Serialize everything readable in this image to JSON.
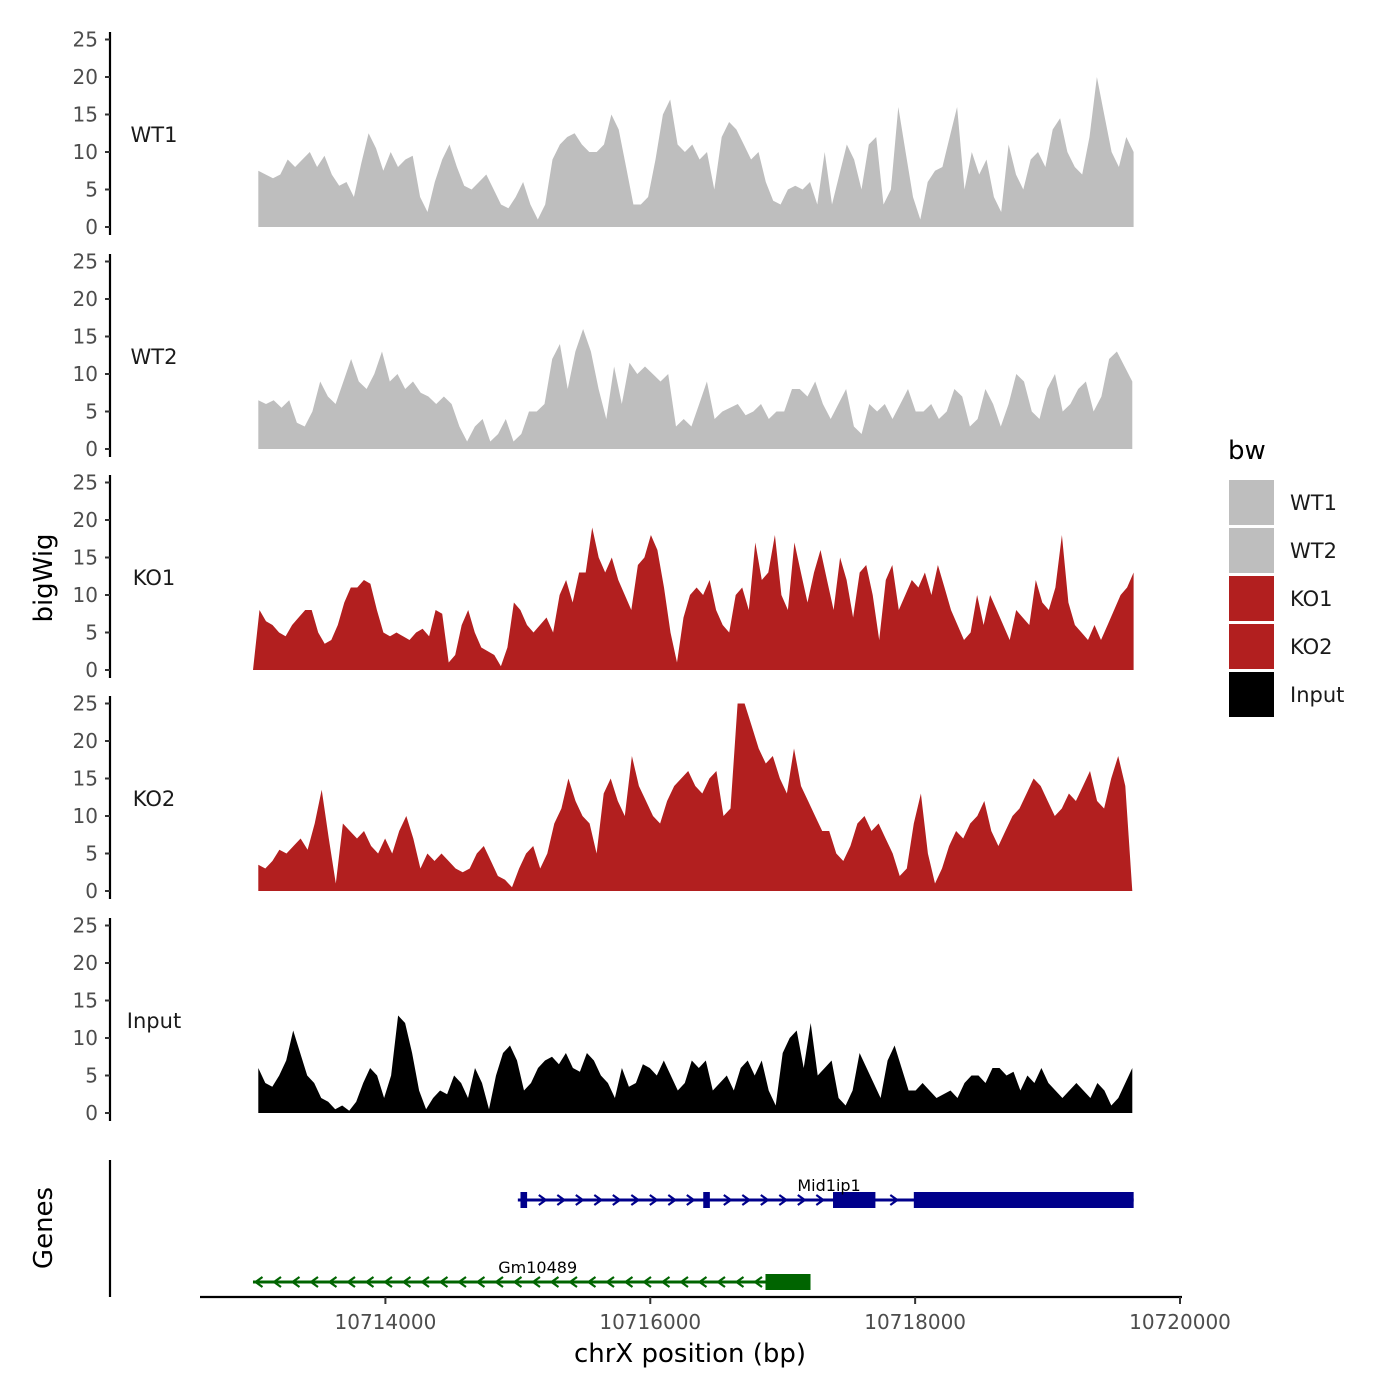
{
  "chart_data": {
    "type": "area",
    "ylabel": "bigWig",
    "xlabel": "chrX position (bp)",
    "genes_label": "Genes",
    "ylim": [
      0,
      26
    ],
    "xlim": [
      10712600,
      10720000
    ],
    "y_ticks": [
      0,
      5,
      10,
      15,
      20,
      25
    ],
    "y_tick_labels": [
      "0",
      "5",
      "10",
      "15",
      "20",
      "25"
    ],
    "x_ticks": [
      10714000,
      10716000,
      10718000,
      10720000
    ],
    "x_tick_labels": [
      "10714000",
      "10716000",
      "10718000",
      "10720000"
    ],
    "legend": {
      "title": "bw",
      "entries": [
        {
          "label": "WT1",
          "color": "#bebebe"
        },
        {
          "label": "WT2",
          "color": "#bebebe"
        },
        {
          "label": "KO1",
          "color": "#b21f1f"
        },
        {
          "label": "KO2",
          "color": "#b21f1f"
        },
        {
          "label": "Input",
          "color": "#000000"
        }
      ]
    },
    "series": [
      {
        "name": "WT1",
        "color": "#bebebe",
        "x_start": 10713040,
        "x_end": 10719650,
        "values": [
          7.5,
          7,
          6.5,
          7,
          9,
          8,
          9,
          10,
          8,
          9.5,
          7,
          5.5,
          6,
          4,
          8.5,
          12.5,
          10.5,
          7.5,
          10,
          8,
          9,
          9.5,
          4,
          2,
          6,
          9,
          11,
          8,
          5.5,
          5,
          6,
          7,
          5,
          3,
          2.5,
          4,
          6,
          3,
          1,
          3,
          9,
          11,
          12,
          12.5,
          11,
          10,
          10,
          11,
          15,
          13,
          8,
          3,
          3,
          4,
          9,
          15,
          17,
          11,
          10,
          11,
          9,
          10,
          5,
          12,
          14,
          13,
          11,
          9,
          10,
          6,
          3.5,
          3,
          5,
          5.5,
          5,
          6,
          3,
          10,
          3,
          7,
          11,
          9,
          5,
          11,
          12,
          3,
          5,
          16,
          10,
          4,
          1,
          6,
          7.5,
          8,
          12,
          16,
          5,
          10,
          7,
          9,
          4,
          2,
          11,
          7,
          5,
          9,
          10,
          8,
          13,
          14.5,
          10,
          8,
          7,
          12,
          20,
          15,
          10,
          8,
          12,
          10
        ]
      },
      {
        "name": "WT2",
        "color": "#bebebe",
        "x_start": 10713040,
        "x_end": 10719640,
        "values": [
          6.5,
          6,
          6.5,
          5.5,
          6.5,
          3.5,
          3,
          5,
          9,
          7,
          6,
          9,
          12,
          9,
          8,
          10,
          13,
          9,
          10,
          8,
          9,
          7.5,
          7,
          6,
          7,
          6,
          3,
          1,
          3,
          4,
          1,
          2,
          4,
          1,
          2,
          5,
          5,
          6,
          12,
          14,
          8,
          13,
          16,
          13,
          8,
          4,
          11,
          6,
          11.5,
          10,
          11,
          10,
          9,
          10,
          3,
          4,
          3,
          6,
          9,
          4,
          5,
          5.5,
          6,
          4.5,
          5,
          6,
          4,
          5,
          5,
          8,
          8,
          7,
          9,
          6,
          4,
          6,
          8,
          3,
          2,
          6,
          5,
          6,
          4,
          6,
          8,
          5,
          5,
          6,
          4,
          5,
          8,
          7,
          3,
          4,
          8,
          6,
          3,
          6,
          10,
          9,
          5,
          4,
          8,
          10,
          5,
          6,
          8,
          9,
          5,
          7,
          12,
          13,
          11,
          9
        ]
      },
      {
        "name": "KO1",
        "color": "#b21f1f",
        "x_start": 10713000,
        "x_end": 10719650,
        "values": [
          0,
          8,
          6.5,
          6,
          5,
          4.5,
          6,
          7,
          8,
          8,
          5,
          3.5,
          4,
          6,
          9,
          11,
          11,
          12,
          11.5,
          8,
          5,
          4.5,
          5,
          4.5,
          4,
          5,
          5.5,
          4.5,
          8,
          7.5,
          1,
          2,
          6,
          8,
          5,
          3,
          2.5,
          2,
          0.5,
          3,
          9,
          8,
          6,
          5,
          6,
          7,
          5,
          10,
          12,
          9,
          13,
          13,
          19,
          15,
          13,
          15,
          12,
          10,
          8,
          14,
          15,
          18,
          16,
          11,
          5,
          1,
          7,
          10,
          11,
          10,
          12,
          8,
          6,
          5,
          10,
          11,
          8,
          17,
          12,
          13,
          18,
          10,
          8,
          17,
          13,
          9,
          13,
          16,
          12,
          8,
          15,
          12,
          7,
          13,
          14,
          10,
          4,
          12,
          14,
          8,
          10,
          12,
          11,
          13,
          10,
          14,
          11,
          8,
          6,
          4,
          5,
          10,
          6,
          10,
          8,
          6,
          4,
          8,
          7,
          6,
          12,
          9,
          8,
          11,
          18,
          9,
          6,
          5,
          4,
          6,
          4,
          6,
          8,
          10,
          11,
          13
        ]
      },
      {
        "name": "KO2",
        "color": "#b21f1f",
        "x_start": 10713040,
        "x_end": 10719640,
        "values": [
          3.5,
          3,
          4,
          5.5,
          5,
          6,
          7,
          5.5,
          9,
          13.5,
          7,
          1,
          9,
          8,
          7,
          8,
          6,
          5,
          7,
          5,
          8,
          10,
          7,
          3,
          5,
          4,
          5,
          4,
          3,
          2.5,
          3,
          5,
          6,
          4,
          2,
          1.5,
          0.5,
          3,
          5,
          6,
          3,
          5,
          9,
          11,
          15,
          12,
          10,
          9,
          5,
          13,
          15,
          12,
          10,
          18,
          14,
          12,
          10,
          9,
          12,
          14,
          15,
          16,
          14,
          13,
          15,
          16,
          10,
          11,
          25,
          25,
          22,
          19,
          17,
          18,
          15,
          13,
          19,
          14,
          12,
          10,
          8,
          8,
          5,
          4,
          6,
          9,
          10,
          8,
          9,
          7,
          5,
          2,
          3,
          9,
          13,
          5,
          1,
          3,
          6,
          8,
          7,
          9,
          10,
          12,
          8,
          6,
          8,
          10,
          11,
          13,
          15,
          14,
          12,
          10,
          11,
          13,
          12,
          14,
          16,
          12,
          11,
          15,
          18,
          14,
          0
        ]
      },
      {
        "name": "Input",
        "color": "#000000",
        "x_start": 10713040,
        "x_end": 10719640,
        "values": [
          6,
          4,
          3.5,
          5,
          7,
          11,
          8,
          5,
          4,
          2,
          1.5,
          0.5,
          1,
          0.3,
          1.5,
          4,
          6,
          5,
          2,
          5,
          13,
          12,
          8,
          3,
          0.5,
          2,
          3,
          2.5,
          5,
          4,
          2,
          6,
          4,
          0.5,
          5,
          8,
          9,
          7,
          3,
          4,
          6,
          7,
          7.5,
          6.5,
          8,
          6,
          5.5,
          8,
          7,
          5,
          4,
          2,
          6,
          3.5,
          4,
          6.5,
          6,
          5,
          7,
          5,
          3,
          4,
          7,
          6,
          7,
          3,
          4,
          5,
          3,
          6,
          7,
          5,
          7,
          3,
          1,
          8,
          10,
          11,
          6,
          12,
          5,
          6,
          7,
          2,
          1,
          3,
          8,
          6,
          4,
          2,
          7,
          9,
          6,
          3,
          3,
          4,
          3,
          2,
          2.5,
          3,
          2,
          4,
          5,
          5,
          4,
          6,
          6,
          5,
          5.5,
          3,
          5,
          4,
          6,
          4,
          3,
          2,
          3,
          4,
          3,
          2,
          4,
          3,
          1,
          2,
          4,
          6
        ]
      }
    ],
    "genes": [
      {
        "name": "Gm10489",
        "strand": "-",
        "color": "#006400",
        "row": 2,
        "start": 10713000,
        "end": 10717200,
        "label_x": 10715150,
        "exons": [
          [
            10716870,
            10717210
          ]
        ]
      },
      {
        "name": "Mid1ip1",
        "strand": "+",
        "color": "#00008b",
        "row": 1,
        "start": 10715000,
        "end": 10719650,
        "label_x": 10717350,
        "exons": [
          [
            10715020,
            10715070
          ],
          [
            10716400,
            10716450
          ],
          [
            10717380,
            10717700
          ],
          [
            10717990,
            10719650
          ]
        ]
      }
    ]
  }
}
